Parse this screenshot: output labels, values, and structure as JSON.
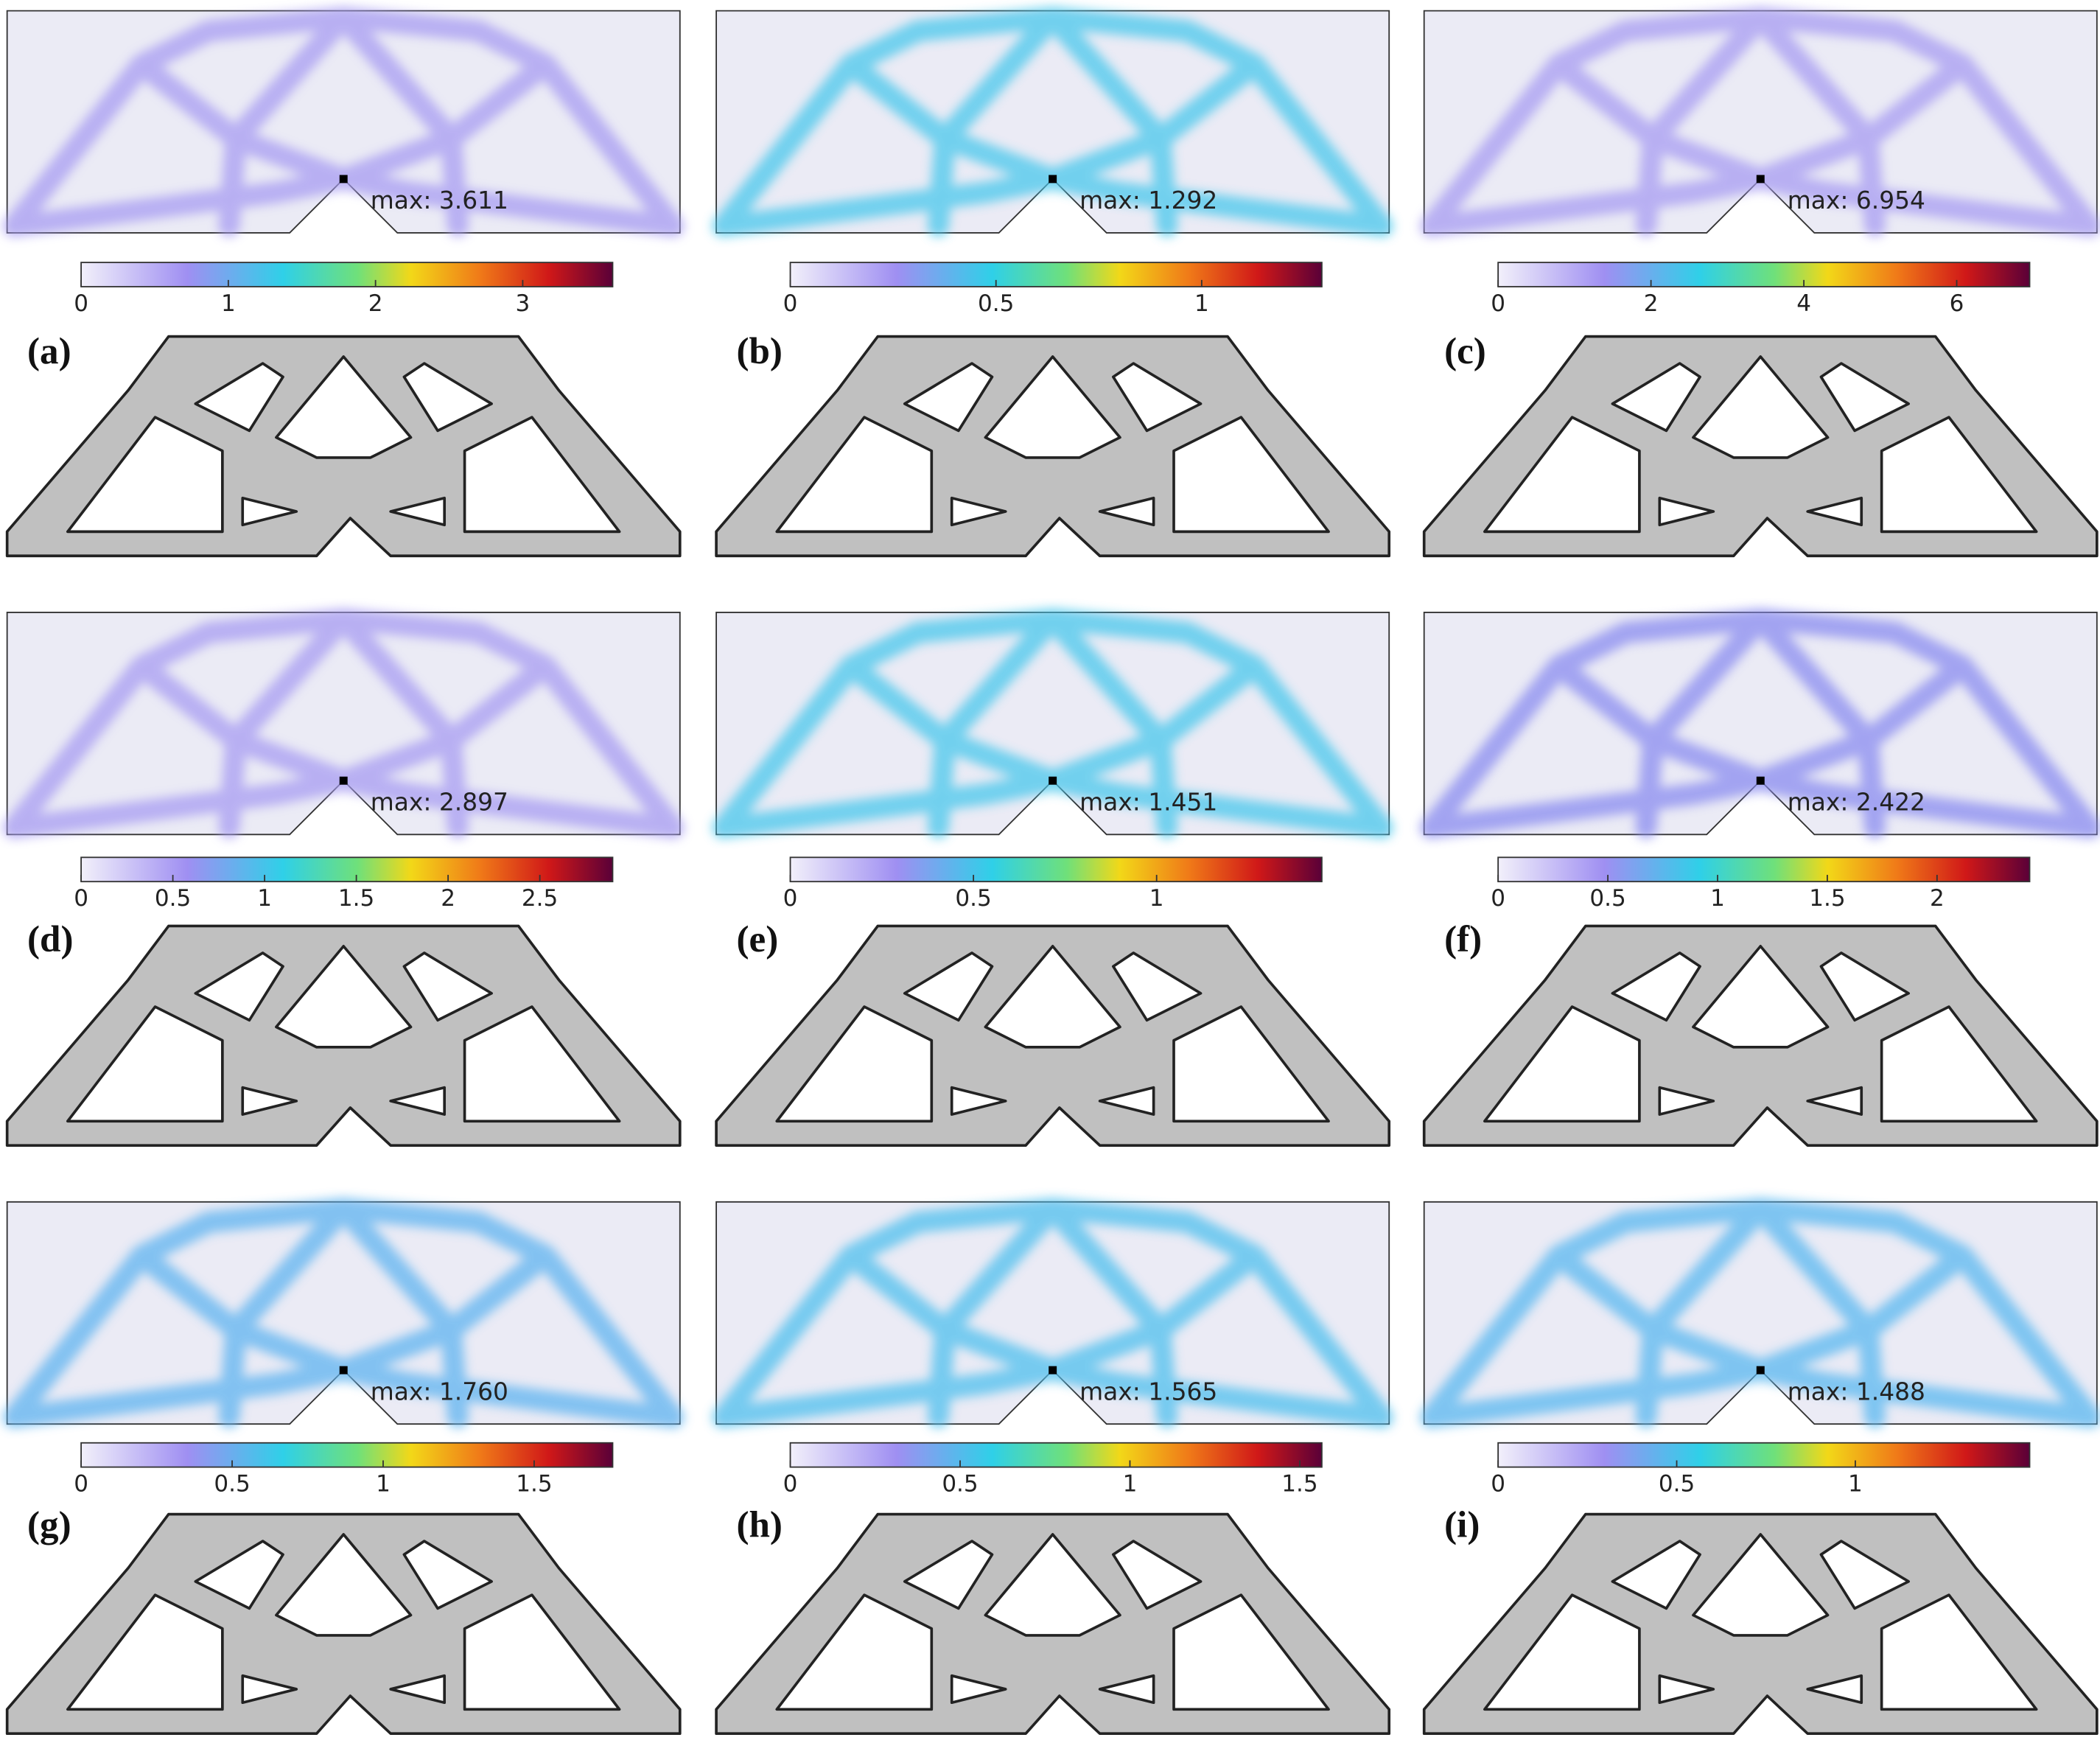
{
  "panels": [
    {
      "label": "(a)",
      "max_label": "max: 3.611",
      "colorbar_range": [
        0,
        3.611
      ],
      "colorbar_ticks": [
        0,
        1,
        2,
        3
      ]
    },
    {
      "label": "(b)",
      "max_label": "max: 1.292",
      "colorbar_range": [
        0,
        1.292
      ],
      "colorbar_ticks": [
        0,
        0.5,
        1
      ]
    },
    {
      "label": "(c)",
      "max_label": "max: 6.954",
      "colorbar_range": [
        0,
        6.954
      ],
      "colorbar_ticks": [
        0,
        2,
        4,
        6
      ]
    },
    {
      "label": "(d)",
      "max_label": "max: 2.897",
      "colorbar_range": [
        0,
        2.897
      ],
      "colorbar_ticks": [
        0,
        0.5,
        1,
        1.5,
        2,
        2.5
      ]
    },
    {
      "label": "(e)",
      "max_label": "max: 1.451",
      "colorbar_range": [
        0,
        1.451
      ],
      "colorbar_ticks": [
        0,
        0.5,
        1
      ]
    },
    {
      "label": "(f)",
      "max_label": "max: 2.422",
      "colorbar_range": [
        0,
        2.422
      ],
      "colorbar_ticks": [
        0,
        0.5,
        1,
        1.5,
        2
      ]
    },
    {
      "label": "(g)",
      "max_label": "max: 1.760",
      "colorbar_range": [
        0,
        1.76
      ],
      "colorbar_ticks": [
        0,
        0.5,
        1,
        1.5
      ]
    },
    {
      "label": "(h)",
      "max_label": "max: 1.565",
      "colorbar_range": [
        0,
        1.565
      ],
      "colorbar_ticks": [
        0,
        0.5,
        1,
        1.5
      ]
    },
    {
      "label": "(i)",
      "max_label": "max: 1.488",
      "colorbar_range": [
        0,
        1.488
      ],
      "colorbar_ticks": [
        0,
        0.5,
        1
      ]
    }
  ]
}
